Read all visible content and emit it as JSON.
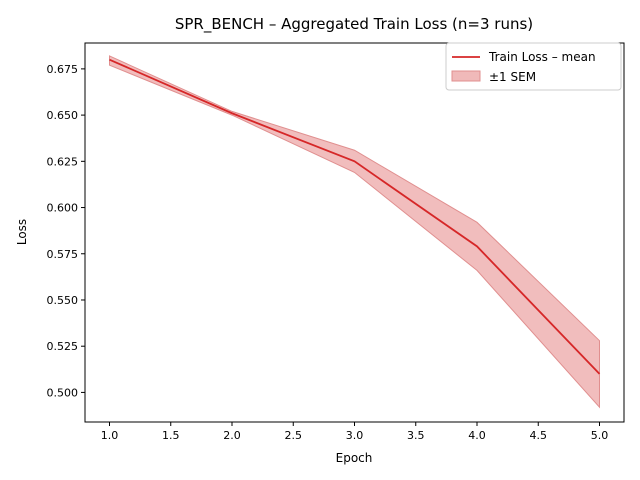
{
  "chart_data": {
    "type": "line",
    "title": "SPR_BENCH – Aggregated Train Loss (n=3 runs)",
    "xlabel": "Epoch",
    "ylabel": "Loss",
    "xlim": [
      0.8,
      5.2
    ],
    "ylim": [
      0.484,
      0.689
    ],
    "x_ticks": [
      "1.0",
      "1.5",
      "2.0",
      "2.5",
      "3.0",
      "3.5",
      "4.0",
      "4.5",
      "5.0"
    ],
    "y_ticks": [
      "0.500",
      "0.525",
      "0.550",
      "0.575",
      "0.600",
      "0.625",
      "0.650",
      "0.675"
    ],
    "grid": false,
    "legend_position": "top-right",
    "legend": [
      "Train Loss – mean",
      "±1 SEM"
    ],
    "colors": {
      "line": "#d62728",
      "band": "#f0b9b9",
      "band_edge": "#e08f8f"
    },
    "series": [
      {
        "name": "Train Loss – mean",
        "x": [
          1,
          2,
          3,
          4,
          5
        ],
        "values": [
          0.68,
          0.651,
          0.625,
          0.579,
          0.51
        ],
        "sem_lower": [
          0.677,
          0.65,
          0.619,
          0.566,
          0.492
        ],
        "sem_upper": [
          0.682,
          0.652,
          0.631,
          0.592,
          0.528
        ]
      }
    ]
  }
}
